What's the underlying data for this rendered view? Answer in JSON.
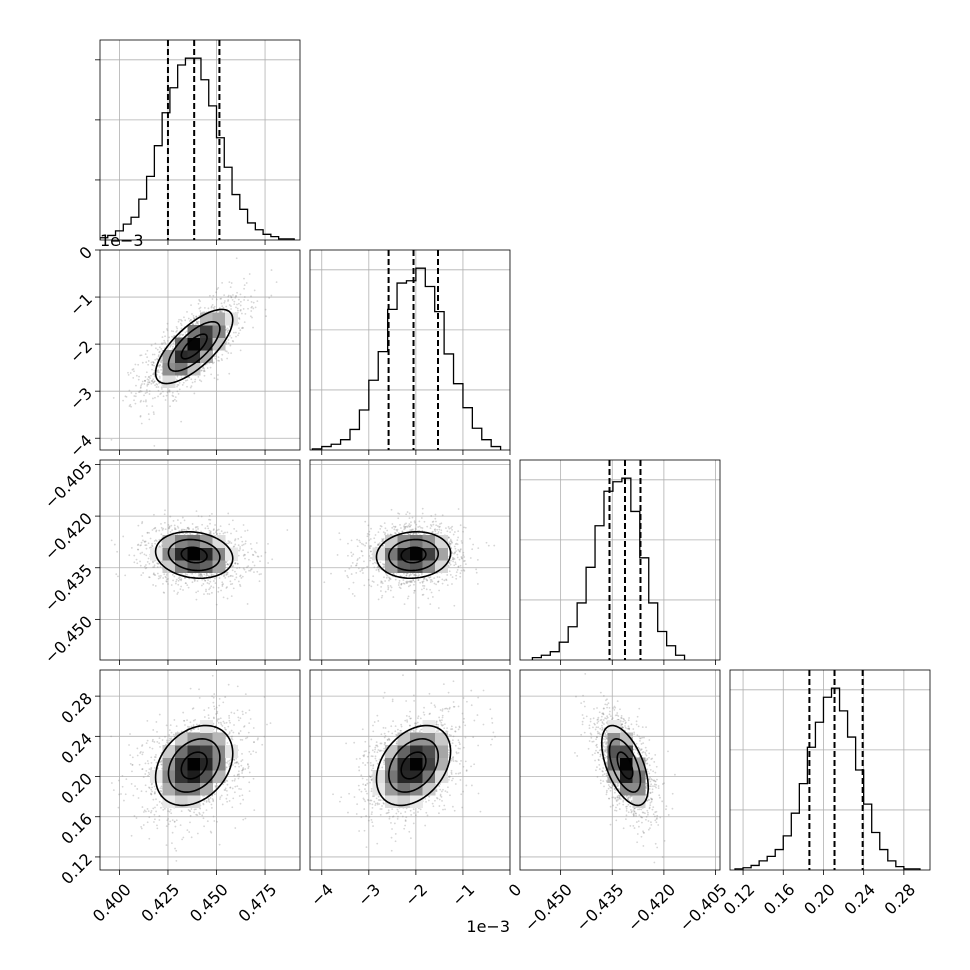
{
  "chart_data": {
    "type": "corner",
    "grid": true,
    "parameters": [
      {
        "range": [
          0.39,
          0.493
        ],
        "ticks": [
          0.4,
          0.425,
          0.45,
          0.475
        ],
        "tick_labels": [
          "0.400",
          "0.425",
          "0.450",
          "0.475"
        ],
        "offset_label": ""
      },
      {
        "range": [
          -4.25,
          0.0
        ],
        "ticks": [
          -4,
          -3,
          -2,
          -1,
          0
        ],
        "tick_labels": [
          "−4",
          "−3",
          "−2",
          "−1",
          "0"
        ],
        "offset_label": "1e−3"
      },
      {
        "range": [
          -0.4618,
          -0.4037
        ],
        "ticks": [
          -0.45,
          -0.435,
          -0.42,
          -0.405
        ],
        "tick_labels": [
          "−0.450",
          "−0.435",
          "−0.420",
          "−0.405"
        ],
        "offset_label": ""
      },
      {
        "range": [
          0.107,
          0.306
        ],
        "ticks": [
          0.12,
          0.16,
          0.2,
          0.24,
          0.28
        ],
        "tick_labels": [
          "0.12",
          "0.16",
          "0.20",
          "0.24",
          "0.28"
        ],
        "offset_label": ""
      }
    ],
    "marginals": [
      {
        "quantiles": [
          0.425,
          0.4385,
          0.4515
        ],
        "bin_edges": [
          0.39,
          0.394,
          0.398,
          0.402,
          0.406,
          0.41,
          0.414,
          0.418,
          0.422,
          0.426,
          0.43,
          0.434,
          0.438,
          0.442,
          0.446,
          0.45,
          0.454,
          0.458,
          0.462,
          0.466,
          0.47,
          0.474,
          0.478,
          0.482,
          0.486,
          0.49
        ],
        "counts": [
          2,
          4,
          8,
          14,
          20,
          36,
          56,
          83,
          112,
          134,
          154,
          160,
          160,
          141,
          118,
          90,
          64,
          40,
          27,
          15,
          9,
          5,
          3,
          1,
          1
        ]
      },
      {
        "quantiles": [
          -2.58,
          -2.05,
          -1.53
        ],
        "bin_edges": [
          -4.2,
          -4.0,
          -3.8,
          -3.6,
          -3.4,
          -3.2,
          -3.0,
          -2.8,
          -2.6,
          -2.4,
          -2.2,
          -2.0,
          -1.8,
          -1.6,
          -1.4,
          -1.2,
          -1.0,
          -0.8,
          -0.6,
          -0.4,
          -0.2
        ],
        "counts": [
          1,
          3,
          5,
          9,
          18,
          35,
          61,
          86,
          123,
          146,
          148,
          159,
          143,
          121,
          84,
          58,
          37,
          19,
          9,
          3
        ]
      },
      {
        "quantiles": [
          -0.4358,
          -0.4313,
          -0.4268
        ],
        "bin_edges": [
          -0.4582,
          -0.4556,
          -0.453,
          -0.4504,
          -0.4478,
          -0.4452,
          -0.4426,
          -0.44,
          -0.4374,
          -0.4348,
          -0.4322,
          -0.4296,
          -0.427,
          -0.4244,
          -0.4218,
          -0.4192,
          -0.4166,
          -0.414
        ],
        "counts": [
          2,
          4,
          7,
          15,
          28,
          48,
          78,
          113,
          142,
          150,
          153,
          125,
          86,
          48,
          24,
          12,
          4
        ]
      },
      {
        "quantiles": [
          0.186,
          0.211,
          0.239
        ],
        "bin_edges": [
          0.112,
          0.12,
          0.128,
          0.136,
          0.144,
          0.152,
          0.16,
          0.168,
          0.176,
          0.184,
          0.192,
          0.2,
          0.208,
          0.216,
          0.224,
          0.232,
          0.24,
          0.248,
          0.256,
          0.264,
          0.272,
          0.28,
          0.288,
          0.296
        ],
        "counts": [
          1,
          2,
          4,
          8,
          12,
          18,
          30,
          50,
          76,
          108,
          130,
          152,
          160,
          140,
          117,
          88,
          58,
          33,
          18,
          8,
          3,
          1,
          1
        ]
      }
    ],
    "correlations": [
      {
        "x": 0,
        "y": 1,
        "rho": 0.72
      },
      {
        "x": 0,
        "y": 2,
        "rho": -0.15
      },
      {
        "x": 1,
        "y": 2,
        "rho": 0.08
      },
      {
        "x": 0,
        "y": 3,
        "rho": 0.3
      },
      {
        "x": 1,
        "y": 3,
        "rho": 0.35
      },
      {
        "x": 2,
        "y": 3,
        "rho": -0.55
      }
    ],
    "contour_levels": [
      0.5,
      1.0,
      1.5
    ]
  }
}
